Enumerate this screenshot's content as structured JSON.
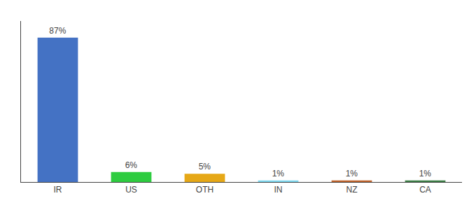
{
  "chart_data": {
    "type": "bar",
    "categories": [
      "IR",
      "US",
      "OTH",
      "IN",
      "NZ",
      "CA"
    ],
    "values": [
      87,
      6,
      5,
      1,
      1,
      1
    ],
    "value_labels": [
      "87%",
      "6%",
      "5%",
      "1%",
      "1%",
      "1%"
    ],
    "colors": [
      "#4472c4",
      "#2ecc40",
      "#e6a817",
      "#7fd8f0",
      "#c0622a",
      "#3a7d44"
    ],
    "ylim": [
      0,
      97
    ],
    "grid": false,
    "data_labels": true,
    "tick_labels": "x"
  }
}
